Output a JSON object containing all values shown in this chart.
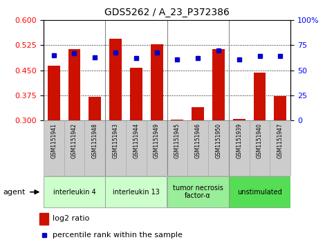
{
  "title": "GDS5262 / A_23_P372386",
  "samples": [
    "GSM1151941",
    "GSM1151942",
    "GSM1151948",
    "GSM1151943",
    "GSM1151944",
    "GSM1151949",
    "GSM1151945",
    "GSM1151946",
    "GSM1151950",
    "GSM1151939",
    "GSM1151940",
    "GSM1151947"
  ],
  "log2_ratio": [
    0.463,
    0.513,
    0.37,
    0.545,
    0.457,
    0.528,
    0.303,
    0.34,
    0.513,
    0.305,
    0.444,
    0.373
  ],
  "percentile_pct": [
    65,
    67,
    63,
    68,
    62,
    68,
    61,
    62,
    70,
    61,
    64,
    64
  ],
  "ylim_left": [
    0.3,
    0.6
  ],
  "ylim_right": [
    0,
    100
  ],
  "yticks_left": [
    0.3,
    0.375,
    0.45,
    0.525,
    0.6
  ],
  "yticks_right": [
    0,
    25,
    50,
    75,
    100
  ],
  "groups": [
    {
      "label": "interleukin 4",
      "indices": [
        0,
        1,
        2
      ],
      "color": "#ccffcc"
    },
    {
      "label": "interleukin 13",
      "indices": [
        3,
        4,
        5
      ],
      "color": "#ccffcc"
    },
    {
      "label": "tumor necrosis\nfactor-α",
      "indices": [
        6,
        7,
        8
      ],
      "color": "#99ee99"
    },
    {
      "label": "unstimulated",
      "indices": [
        9,
        10,
        11
      ],
      "color": "#55dd55"
    }
  ],
  "bar_color": "#cc1100",
  "dot_color": "#0000cc",
  "bar_width": 0.6,
  "legend_items": [
    {
      "label": "log2 ratio",
      "color": "#cc1100"
    },
    {
      "label": "percentile rank within the sample",
      "color": "#0000cc"
    }
  ],
  "agent_label": "agent",
  "tick_area_color": "#cccccc",
  "group_separator_indices": [
    2,
    5,
    8
  ]
}
